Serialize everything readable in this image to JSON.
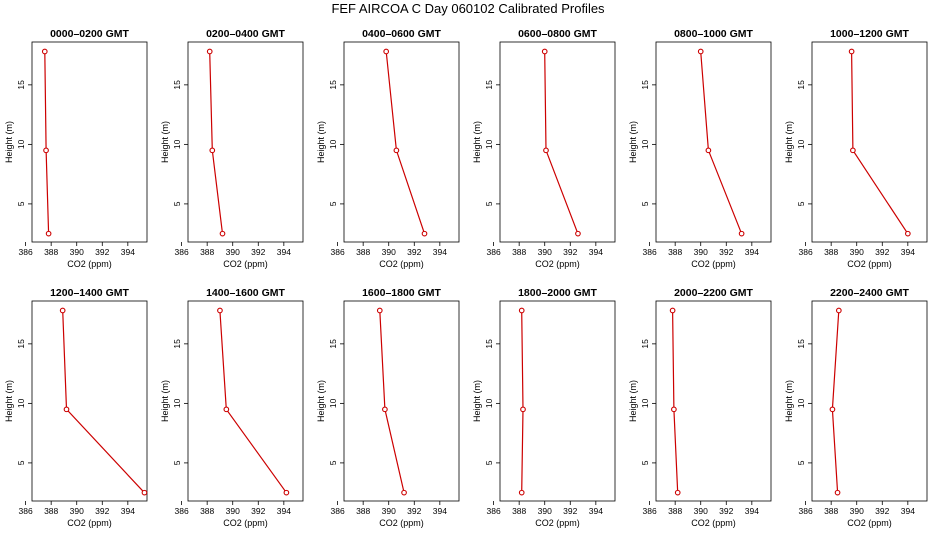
{
  "title": "FEF AIRCOA C  Day 060102  Calibrated Profiles",
  "colors": {
    "line": "#cc0000",
    "axis": "#000000"
  },
  "chart_data": {
    "type": "line",
    "xlabel": "CO2 (ppm)",
    "ylabel": "Height (m)",
    "xlim": [
      386.5,
      395.5
    ],
    "ylim": [
      1.8,
      18.6
    ],
    "xticks": [
      "386",
      "390",
      "394"
    ],
    "yticks": [
      "5",
      "10",
      "15"
    ],
    "heights": [
      17.8,
      9.5,
      2.5
    ],
    "panels": [
      {
        "title": "0000–0200 GMT",
        "co2": [
          387.5,
          387.6,
          387.8
        ]
      },
      {
        "title": "0200–0400 GMT",
        "co2": [
          388.2,
          388.4,
          389.2
        ]
      },
      {
        "title": "0400–0600 GMT",
        "co2": [
          389.8,
          390.6,
          392.8
        ]
      },
      {
        "title": "0600–0800 GMT",
        "co2": [
          390.0,
          390.1,
          392.6
        ]
      },
      {
        "title": "0800–1000 GMT",
        "co2": [
          390.0,
          390.6,
          393.2
        ]
      },
      {
        "title": "1000–1200 GMT",
        "co2": [
          389.6,
          389.7,
          394.0
        ]
      },
      {
        "title": "1200–1400 GMT",
        "co2": [
          388.9,
          389.2,
          395.3
        ]
      },
      {
        "title": "1400–1600 GMT",
        "co2": [
          389.0,
          389.5,
          394.2
        ]
      },
      {
        "title": "1600–1800 GMT",
        "co2": [
          389.3,
          389.7,
          391.2
        ]
      },
      {
        "title": "1800–2000 GMT",
        "co2": [
          388.2,
          388.3,
          388.2
        ]
      },
      {
        "title": "2000–2200 GMT",
        "co2": [
          387.8,
          387.9,
          388.2
        ]
      },
      {
        "title": "2200–2400 GMT",
        "co2": [
          388.6,
          388.1,
          388.5
        ]
      }
    ]
  }
}
